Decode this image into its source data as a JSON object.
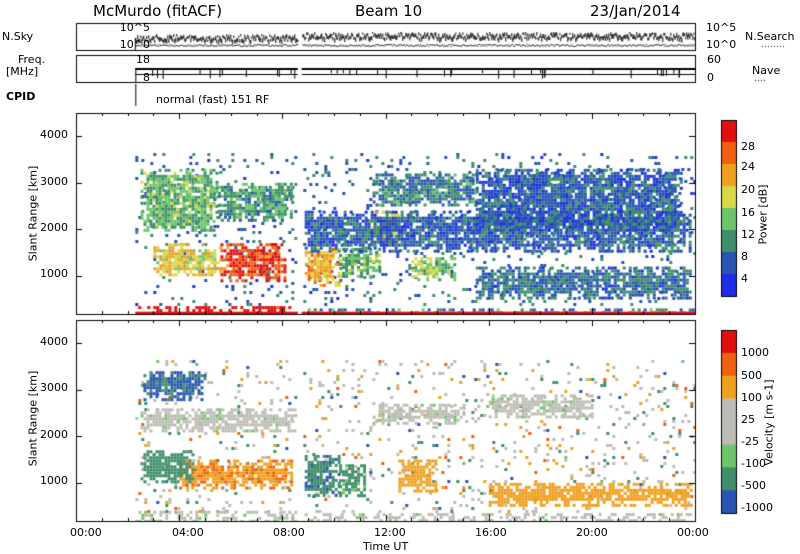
{
  "header": {
    "station": "McMurdo (fitACF)",
    "beam": "Beam 10",
    "date": "23/Jan/2014"
  },
  "status_panels": {
    "nsky_label": "N.Sky",
    "nsky_ticks": [
      "10^5",
      "10^0"
    ],
    "nsearch_label": "N.Search",
    "nsearch_ticks": [
      "10^5",
      "10^0"
    ],
    "freq_label_1": "Freq.",
    "freq_label_2": "[MHz]",
    "freq_ticks": [
      "18",
      "8"
    ],
    "nave_label": "Nave",
    "nave_ticks": [
      "60",
      "0"
    ],
    "cpid_label": "CPID",
    "cpid_text": "normal (fast) 151 RF"
  },
  "colors": {
    "power_scale": [
      "#1f2ee6",
      "#2a55b5",
      "#3f8f6a",
      "#6ec46a",
      "#d8d84a",
      "#f0a020",
      "#f06010",
      "#e01010"
    ],
    "velocity_scale": [
      "#e01010",
      "#f06010",
      "#f0a020",
      "#bcbcb4",
      "#bcbcb4",
      "#6ec46a",
      "#3f8f6a",
      "#2a55b5"
    ]
  },
  "chart_data": [
    {
      "type": "heatmap",
      "name": "power",
      "ylabel": "Slant Range [km]",
      "xlabel": "",
      "y_ticks": [
        "1000",
        "2000",
        "3000",
        "4000"
      ],
      "ylim": [
        180,
        4500
      ],
      "colorbar_label": "Power [dB]",
      "colorbar_ticks": [
        "4",
        "8",
        "12",
        "16",
        "20",
        "24",
        "28"
      ],
      "colorbar_range": [
        0,
        30
      ],
      "data_start_hour": 2.3,
      "data_gap_hours": [
        8.6,
        8.75
      ],
      "regions": [
        {
          "t": [
            2.3,
            8.6
          ],
          "r": [
            180,
            350
          ],
          "v": 30
        },
        {
          "t": [
            8.75,
            24
          ],
          "r": [
            180,
            300
          ],
          "v": 8
        },
        {
          "t": [
            5.6,
            8.1
          ],
          "r": [
            900,
            1700
          ],
          "v": 26
        },
        {
          "t": [
            3.0,
            5.6
          ],
          "r": [
            1000,
            1700
          ],
          "v": 18
        },
        {
          "t": [
            8.75,
            10.2
          ],
          "r": [
            800,
            1600
          ],
          "v": 20
        },
        {
          "t": [
            10.2,
            11.8
          ],
          "r": [
            1000,
            1600
          ],
          "v": 12
        },
        {
          "t": [
            13.0,
            14.7
          ],
          "r": [
            900,
            1400
          ],
          "v": 14
        },
        {
          "t": [
            11.5,
            12.5
          ],
          "r": [
            1700,
            2400
          ],
          "v": 18
        },
        {
          "t": [
            2.5,
            5.5
          ],
          "r": [
            2000,
            3300
          ],
          "v": 12
        },
        {
          "t": [
            5.5,
            8.4
          ],
          "r": [
            2200,
            3000
          ],
          "v": 10
        },
        {
          "t": [
            11.5,
            15.5
          ],
          "r": [
            2500,
            3200
          ],
          "v": 8
        },
        {
          "t": [
            15.5,
            23.5
          ],
          "r": [
            2000,
            3300
          ],
          "v": 6
        },
        {
          "t": [
            15.5,
            23.8
          ],
          "r": [
            500,
            1200
          ],
          "v": 7
        },
        {
          "t": [
            8.75,
            23.8
          ],
          "r": [
            1500,
            2400
          ],
          "v": 6
        }
      ]
    },
    {
      "type": "heatmap",
      "name": "velocity",
      "ylabel": "Slant Range [km]",
      "xlabel": "Time UT",
      "x_ticks": [
        "00:00",
        "04:00",
        "08:00",
        "12:00",
        "16:00",
        "20:00",
        "00:00"
      ],
      "xlim": [
        0,
        24
      ],
      "y_ticks": [
        "1000",
        "2000",
        "3000",
        "4000"
      ],
      "ylim": [
        180,
        4500
      ],
      "colorbar_label": "Velocity [m s-1]",
      "colorbar_ticks": [
        "-1000",
        "-500",
        "-100",
        "-25",
        "25",
        "100",
        "500",
        "1000"
      ],
      "data_start_hour": 2.3,
      "data_gap_hours": [
        8.6,
        8.75
      ],
      "regions": [
        {
          "t": [
            2.3,
            8.6
          ],
          "r": [
            180,
            400
          ],
          "v": 0
        },
        {
          "t": [
            4.0,
            8.4
          ],
          "r": [
            900,
            1500
          ],
          "v": -400
        },
        {
          "t": [
            2.5,
            4.5
          ],
          "r": [
            1000,
            1700
          ],
          "v": 300
        },
        {
          "t": [
            8.75,
            10.2
          ],
          "r": [
            700,
            1600
          ],
          "v": 400
        },
        {
          "t": [
            10.2,
            11.2
          ],
          "r": [
            700,
            1400
          ],
          "v": 150
        },
        {
          "t": [
            12.5,
            14.0
          ],
          "r": [
            800,
            1500
          ],
          "v": -300
        },
        {
          "t": [
            2.5,
            8.5
          ],
          "r": [
            2100,
            2600
          ],
          "v": 0
        },
        {
          "t": [
            11.5,
            15.0
          ],
          "r": [
            2300,
            2700
          ],
          "v": 0
        },
        {
          "t": [
            16.0,
            20.0
          ],
          "r": [
            2400,
            2900
          ],
          "v": 0
        },
        {
          "t": [
            2.5,
            5.0
          ],
          "r": [
            2800,
            3400
          ],
          "v": 600
        },
        {
          "t": [
            16.0,
            23.8
          ],
          "r": [
            500,
            1000
          ],
          "v": -200
        },
        {
          "t": [
            8.75,
            23.8
          ],
          "r": [
            180,
            350
          ],
          "v": 0
        }
      ]
    }
  ]
}
